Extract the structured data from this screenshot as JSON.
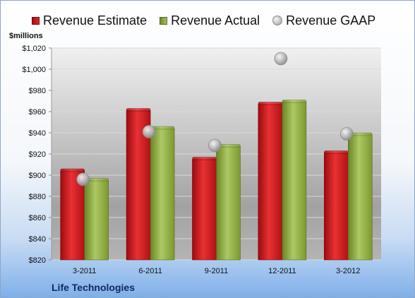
{
  "chart_data": {
    "type": "bar",
    "title": "",
    "ylabel": "$millions",
    "xlabel": "",
    "categories": [
      "3-2011",
      "6-2011",
      "9-2011",
      "12-2011",
      "3-2012"
    ],
    "series": [
      {
        "name": "Revenue Estimate",
        "type": "bar",
        "values": [
          904,
          961,
          915,
          967,
          921
        ]
      },
      {
        "name": "Revenue Actual",
        "type": "bar",
        "values": [
          895,
          944,
          927,
          969,
          938
        ]
      },
      {
        "name": "Revenue GAAP",
        "type": "scatter",
        "values": [
          896,
          941,
          928,
          1010,
          939
        ]
      }
    ],
    "ylim": [
      820,
      1020
    ],
    "ytick_step": 20,
    "ytick_labels": [
      "$820",
      "$840",
      "$860",
      "$880",
      "$900",
      "$920",
      "$940",
      "$960",
      "$980",
      "$1,000",
      "$1,020"
    ],
    "grid": true,
    "legend": "top",
    "colors": {
      "estimate": "#d41f22",
      "actual": "#93b04a",
      "gaap": "#bfbfbf"
    }
  },
  "footer": {
    "company": "Life Technologies"
  }
}
